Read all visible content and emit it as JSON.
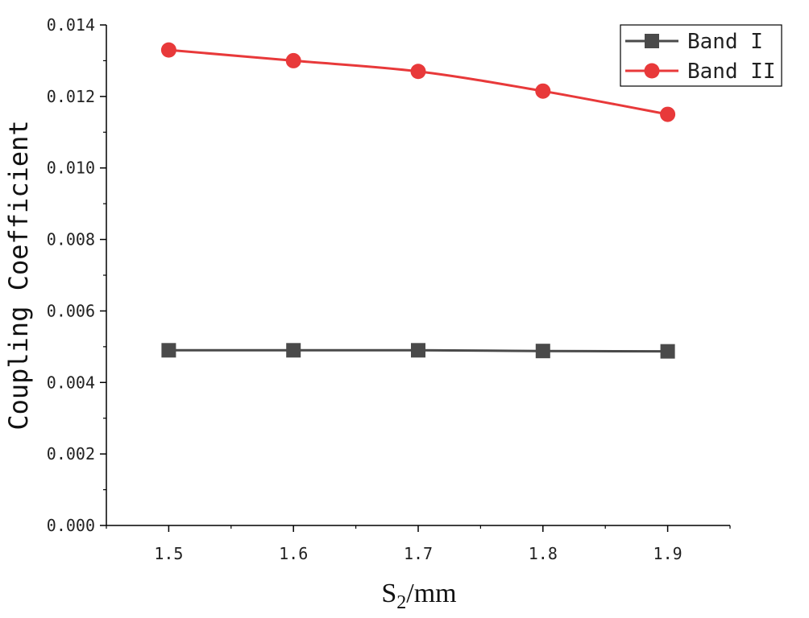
{
  "chart_data": {
    "type": "line",
    "x": [
      1.5,
      1.6,
      1.7,
      1.8,
      1.9
    ],
    "x_tick_labels": [
      "1.5",
      "1.6",
      "1.7",
      "1.8",
      "1.9"
    ],
    "xlim": [
      1.45,
      1.95
    ],
    "y_ticks": [
      0.0,
      0.002,
      0.004,
      0.006,
      0.008,
      0.01,
      0.012,
      0.014
    ],
    "y_tick_labels": [
      "0.000",
      "0.002",
      "0.004",
      "0.006",
      "0.008",
      "0.010",
      "0.012",
      "0.014"
    ],
    "ylim": [
      0,
      0.014
    ],
    "xlabel": {
      "main": "S",
      "sub": "2",
      "rest": "/mm"
    },
    "ylabel": "Coupling Coefficient",
    "title": "",
    "grid": false,
    "legend_position": "top-right",
    "series": [
      {
        "name": "Band I",
        "values": [
          0.0049,
          0.0049,
          0.0049,
          0.00488,
          0.00487
        ],
        "color": "#4a4a4a",
        "marker": "square"
      },
      {
        "name": "Band II",
        "values": [
          0.0133,
          0.013,
          0.0127,
          0.01215,
          0.0115
        ],
        "color": "#e8393a",
        "marker": "circle"
      }
    ]
  }
}
